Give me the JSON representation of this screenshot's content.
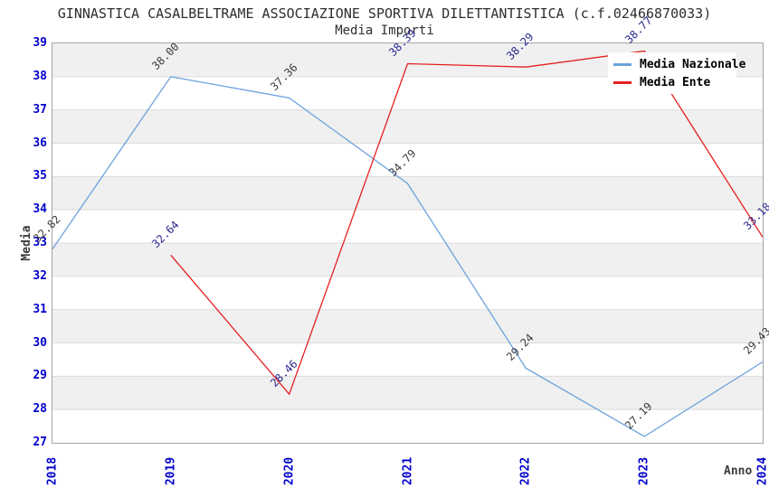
{
  "chart_data": {
    "type": "line",
    "title": "GINNASTICA CASALBELTRAME ASSOCIAZIONE SPORTIVA DILETTANTISTICA (c.f.02466870033)",
    "subtitle": "Media Importi",
    "xlabel": "Anno",
    "ylabel": "Media",
    "x_ticks": [
      2018,
      2019,
      2020,
      2021,
      2022,
      2023,
      2024
    ],
    "xlim": [
      2018,
      2024
    ],
    "ylim": [
      27,
      39
    ],
    "ytick_step": 1,
    "grid": "horizontal gridlines with alternating shaded bands",
    "legend_position": "top-right",
    "value_labels_rotation_deg": 45,
    "series": [
      {
        "name": "Media Nazionale",
        "color": "#6ca2dc",
        "label_color": "#3c3c3c",
        "points": [
          [
            2018,
            32.82
          ],
          [
            2019,
            38.0
          ],
          [
            2020,
            37.36
          ],
          [
            2021,
            34.79
          ],
          [
            2022,
            29.24
          ],
          [
            2023,
            27.19
          ],
          [
            2024,
            29.43
          ]
        ]
      },
      {
        "name": "Media Ente",
        "color": "#e62020",
        "label_color": "#28288f",
        "points": [
          [
            2019,
            32.64
          ],
          [
            2020,
            28.46
          ],
          [
            2021,
            38.39
          ],
          [
            2022,
            38.29
          ],
          [
            2023,
            38.77
          ],
          [
            2024,
            33.18
          ]
        ]
      }
    ],
    "colors": {
      "tick_text": "#0000cc",
      "title_text": "#2e2e2e",
      "band_fill": "#f0f0f0",
      "gridline": "#dcdcdc",
      "plot_border": "#a6a6a6",
      "legend_background": "#ffffff",
      "page_background": "#ffffff"
    }
  }
}
